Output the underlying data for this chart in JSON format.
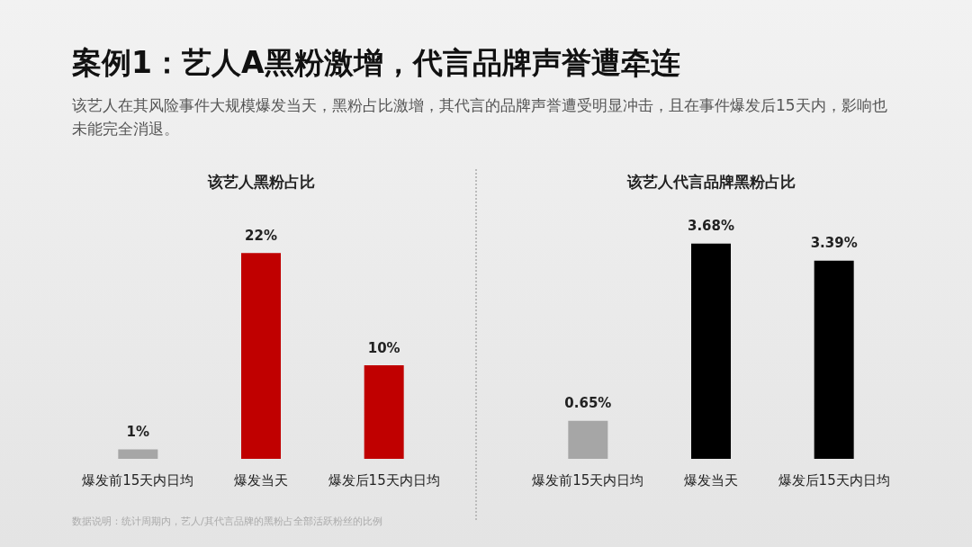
{
  "chart_data": [
    {
      "type": "bar",
      "title": "该艺人黑粉占比",
      "categories": [
        "爆发前15天内日均",
        "爆发当天",
        "爆发后15天内日均"
      ],
      "values": [
        1,
        22,
        10
      ],
      "value_labels": [
        "1%",
        "22%",
        "10%"
      ],
      "colors": [
        "#a6a6a6",
        "#c00000",
        "#c00000"
      ],
      "annotations": [
        "案例1：艺人A黑粉激增，代言品牌声誉遭牵连",
        "该艺人在其风险事件大规模爆发当天，黑粉占比激增，其代言的品牌声誉遭受明显冲击，且在事件爆发后15天内，影响也未能完全消退。",
        "数据说明：统计周期内，艺人/其代言品牌的黑粉占全部活跃粉丝的比例"
      ]
    },
    {
      "type": "bar",
      "title": "该艺人代言品牌黑粉占比",
      "categories": [
        "爆发前15天内日均",
        "爆发当天",
        "爆发后15天内日均"
      ],
      "values": [
        0.65,
        3.68,
        3.39
      ],
      "value_labels": [
        "0.65%",
        "3.68%",
        "3.39%"
      ],
      "colors": [
        "#a6a6a6",
        "#000000",
        "#000000"
      ]
    }
  ]
}
